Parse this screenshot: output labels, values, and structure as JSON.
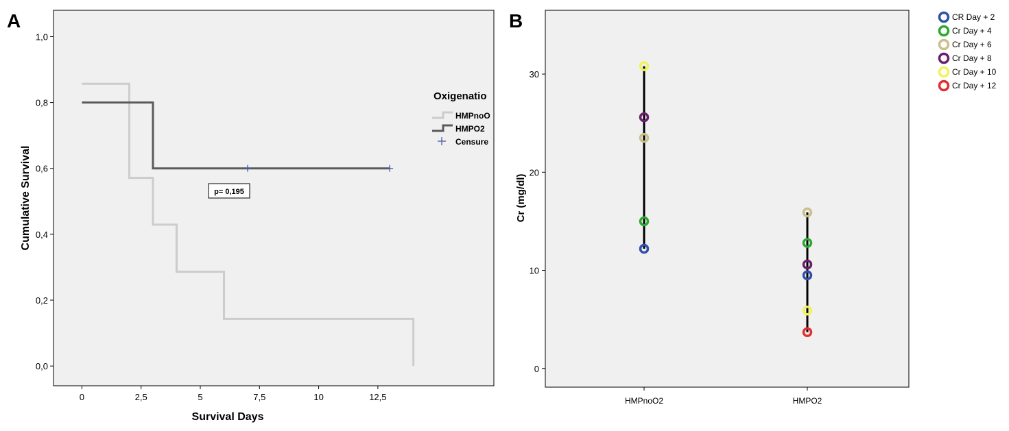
{
  "panels": {
    "a_label": "A",
    "b_label": "B"
  },
  "chart_data": [
    {
      "type": "line",
      "subtype": "kaplan-meier",
      "panel": "A",
      "xlabel": "Survival Days",
      "ylabel": "Cumulative Survival",
      "xlim": [
        -1.2,
        17.4
      ],
      "ylim": [
        -0.06,
        1.08
      ],
      "x_ticks": [
        0,
        2.5,
        5,
        7.5,
        10,
        12.5
      ],
      "x_tick_labels": [
        "0",
        "2,5",
        "5",
        "7,5",
        "10",
        "12,5"
      ],
      "y_ticks": [
        0,
        0.2,
        0.4,
        0.6,
        0.8,
        1.0
      ],
      "y_tick_labels": [
        "0,0",
        "0,2",
        "0,4",
        "0,6",
        "0,8",
        "1,0"
      ],
      "grid": false,
      "legend": {
        "title": "Oxigenatio",
        "position": "right-outside",
        "entries": [
          "HMPnoO",
          "HMPO2",
          "Censure"
        ]
      },
      "annotation": "p= 0,195",
      "series": [
        {
          "name": "HMPnoO",
          "color": "#cccccc",
          "steps": [
            [
              0,
              0.857
            ],
            [
              2,
              0.571
            ],
            [
              3,
              0.429
            ],
            [
              4,
              0.286
            ],
            [
              6,
              0.143
            ],
            [
              14,
              0.0
            ]
          ],
          "end_x": 14
        },
        {
          "name": "HMPO2",
          "color": "#5a5a5a",
          "steps": [
            [
              0,
              0.8
            ],
            [
              3,
              0.6
            ]
          ],
          "end_x": 13,
          "censored": [
            [
              7,
              0.6
            ],
            [
              13,
              0.6
            ]
          ]
        }
      ],
      "censor_color": "#4a5aa8"
    },
    {
      "type": "scatter",
      "panel": "B",
      "ylabel": "Cr (mg/dl)",
      "xlabel": "",
      "categories": [
        "HMPnoO2",
        "HMPO2"
      ],
      "ylim": [
        -1.9,
        36.5
      ],
      "y_ticks": [
        0,
        10,
        20,
        30
      ],
      "y_tick_labels": [
        "0",
        "10",
        "20",
        "30"
      ],
      "grid": false,
      "legend": {
        "position": "right-outside"
      },
      "series": [
        {
          "name": "CR Day + 2",
          "color": "#3050a8",
          "values": [
            12.2,
            9.5
          ]
        },
        {
          "name": "Cr Day + 4",
          "color": "#2ca830",
          "values": [
            15.0,
            12.8
          ]
        },
        {
          "name": "Cr Day + 6",
          "color": "#c9c08a",
          "values": [
            23.5,
            15.9
          ]
        },
        {
          "name": "Cr Day + 8",
          "color": "#6a1f6a",
          "values": [
            25.6,
            10.6
          ]
        },
        {
          "name": "Cr Day + 10",
          "color": "#f2f25a",
          "values": [
            30.8,
            5.9
          ]
        },
        {
          "name": "Cr Day + 12",
          "color": "#e03030",
          "values": [
            null,
            3.7
          ]
        }
      ],
      "range_line_color": "#000000"
    }
  ]
}
